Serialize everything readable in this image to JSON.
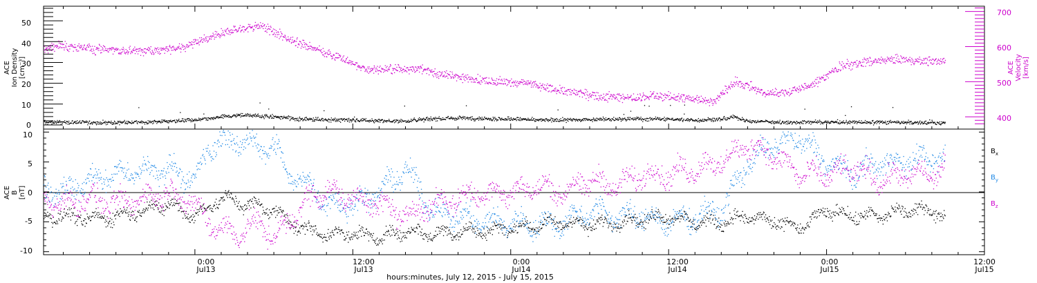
{
  "xaxis": {
    "title": "hours:minutes, July 12, 2015 - July 15, 2015",
    "ticks": [
      {
        "time": "0:00",
        "date": "Jul13",
        "hours": 24
      },
      {
        "time": "12:00",
        "date": "Jul13",
        "hours": 36
      },
      {
        "time": "0:00",
        "date": "Jul14",
        "hours": 48
      },
      {
        "time": "12:00",
        "date": "Jul14",
        "hours": 60
      },
      {
        "time": "0:00",
        "date": "Jul15",
        "hours": 72
      },
      {
        "time": "12:00",
        "date": "Jul15",
        "hours": 84
      }
    ],
    "range_hours": [
      12.5,
      84
    ]
  },
  "top_panel": {
    "ylabel_left": [
      "ACE",
      "Ion Density",
      "[cm⁻³]"
    ],
    "ylabel_right": [
      "ACE",
      "Velocity",
      "[km/s]"
    ],
    "left_ticks": [
      "0",
      "10",
      "20",
      "30",
      "40",
      "50"
    ],
    "right_ticks": [
      "400",
      "500",
      "600",
      "700"
    ]
  },
  "bottom_panel": {
    "ylabel": [
      "ACE",
      "B",
      "[nT]"
    ],
    "ticks": [
      "-10",
      "-5",
      "0",
      "5",
      "10"
    ],
    "legend": {
      "bx": {
        "base": "B",
        "sub": "x"
      },
      "by": {
        "base": "B",
        "sub": "y"
      },
      "bz": {
        "base": "B",
        "sub": "z"
      }
    }
  },
  "colors": {
    "density": "#000000",
    "velocity": "#cc00cc",
    "bx": "#000000",
    "by": "#1e88e5",
    "bz": "#cc00cc"
  },
  "chart_data": [
    {
      "type": "scatter",
      "title": "",
      "xlabel": "hours:minutes, July 12, 2015 - July 15, 2015",
      "ylabel": "ACE Ion Density [cm⁻³]",
      "y2label": "ACE Velocity [km/s]",
      "xlim_hours": [
        12.5,
        84
      ],
      "ylim": [
        -2,
        57
      ],
      "y2lim": [
        365,
        715
      ],
      "series": [
        {
          "name": "Ion Density",
          "axis": "left",
          "x": [
            12.5,
            16,
            20,
            22,
            24,
            25,
            26,
            28,
            30,
            32,
            36,
            40,
            42,
            44,
            48,
            50,
            52,
            56,
            60,
            62,
            64,
            65,
            66,
            68,
            70,
            71,
            72,
            76,
            80,
            81
          ],
          "y": [
            1.5,
            1.3,
            1.5,
            2,
            2.5,
            3,
            4,
            5,
            4,
            3,
            2.5,
            2,
            3,
            3.5,
            3,
            2.5,
            2.5,
            3,
            3,
            2.5,
            3,
            4,
            2,
            1.5,
            1.5,
            1.5,
            1.5,
            1.5,
            1.2,
            1.2
          ]
        },
        {
          "name": "Velocity",
          "axis": "right",
          "x": [
            12.5,
            13.5,
            15,
            17,
            19,
            21,
            23,
            25,
            27,
            29,
            31,
            33,
            35,
            37,
            39,
            41,
            43,
            45,
            47,
            49,
            51,
            53,
            55,
            57,
            59,
            61,
            62.5,
            63.5,
            65,
            66,
            67,
            69,
            71,
            73,
            75,
            77,
            79,
            81
          ],
          "y": [
            590,
            605,
            600,
            592,
            590,
            588,
            600,
            625,
            650,
            660,
            625,
            595,
            570,
            535,
            535,
            540,
            520,
            510,
            500,
            500,
            480,
            470,
            458,
            455,
            460,
            455,
            450,
            445,
            500,
            490,
            470,
            470,
            495,
            545,
            555,
            565,
            560,
            560
          ]
        }
      ]
    },
    {
      "type": "scatter",
      "title": "",
      "xlabel": "hours:minutes, July 12, 2015 - July 15, 2015",
      "ylabel": "ACE B [nT]",
      "xlim_hours": [
        12.5,
        84
      ],
      "ylim": [
        -10.5,
        10.5
      ],
      "series": [
        {
          "name": "Bx",
          "x": [
            12.5,
            14,
            16,
            18,
            20,
            22,
            24,
            26,
            28,
            30,
            32,
            34,
            36,
            38,
            40,
            42,
            44,
            46,
            48,
            50,
            52,
            54,
            56,
            58,
            60,
            62,
            64,
            66,
            68,
            70,
            72,
            74,
            76,
            78,
            80,
            81
          ],
          "y": [
            -4,
            -4,
            -4.5,
            -4,
            -3,
            -2,
            -4,
            -1,
            -2,
            -3,
            -6,
            -7,
            -7,
            -7.5,
            -6.5,
            -7,
            -6.5,
            -6.5,
            -6,
            -5.5,
            -5,
            -5.5,
            -5,
            -4.5,
            -4,
            -5,
            -5,
            -4,
            -5,
            -6,
            -3,
            -4,
            -4,
            -3,
            -3,
            -4
          ]
        },
        {
          "name": "By",
          "x": [
            12.5,
            14,
            16,
            18,
            20,
            22,
            24,
            25,
            26,
            27,
            28,
            29,
            30,
            31,
            32,
            33,
            34,
            36,
            38,
            40,
            42,
            44,
            46,
            48,
            50,
            52,
            54,
            56,
            58,
            60,
            62,
            64,
            66,
            68,
            70,
            72,
            74,
            76,
            78,
            80,
            81
          ],
          "y": [
            1,
            0,
            2,
            3,
            3.5,
            4,
            2,
            7,
            9,
            8,
            9,
            7,
            8,
            3,
            2,
            1,
            -2,
            -2,
            0,
            4,
            -3,
            -4,
            -5,
            -5,
            -5.5,
            -5,
            -3,
            -4,
            -4,
            -5,
            -4,
            -3,
            5,
            8,
            9,
            5,
            3,
            5,
            5,
            6,
            5
          ]
        },
        {
          "name": "Bz",
          "x": [
            12.5,
            14,
            16,
            18,
            20,
            22,
            24,
            25,
            26,
            27,
            28,
            29,
            30,
            31,
            32,
            33,
            34,
            36,
            38,
            40,
            42,
            44,
            46,
            48,
            50,
            52,
            54,
            56,
            58,
            60,
            62,
            64,
            66,
            68,
            70,
            72,
            74,
            76,
            78,
            80,
            81
          ],
          "y": [
            -1,
            -2,
            -1,
            -2,
            -1,
            0,
            -2,
            -5,
            -6,
            -7,
            -6,
            -5,
            -8,
            -5,
            -3,
            0,
            0,
            -1,
            -2,
            -4,
            -2,
            -1,
            0,
            0,
            1,
            0,
            2,
            1,
            3,
            3,
            4,
            5,
            8,
            6,
            3,
            3,
            4,
            2,
            3,
            3,
            4
          ]
        }
      ]
    }
  ]
}
